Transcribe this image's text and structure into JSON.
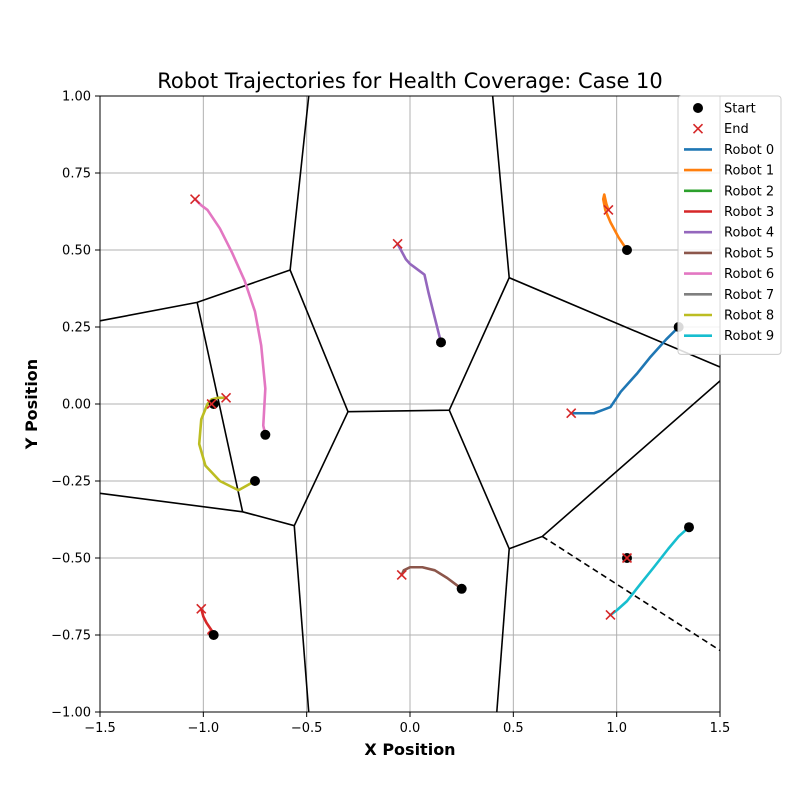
{
  "chart_data": {
    "type": "line",
    "title": "Robot Trajectories for Health Coverage: Case 10",
    "xlabel": "X Position",
    "ylabel": "Y Position",
    "xlim": [
      -1.5,
      1.5
    ],
    "ylim": [
      -1.0,
      1.0
    ],
    "xticks": [
      -1.5,
      -1.0,
      -0.5,
      0.0,
      0.5,
      1.0,
      1.5
    ],
    "xtick_labels": [
      "−1.5",
      "−1.0",
      "−0.5",
      "0.0",
      "0.5",
      "1.0",
      "1.5"
    ],
    "yticks": [
      -1.0,
      -0.75,
      -0.5,
      -0.25,
      0.0,
      0.25,
      0.5,
      0.75,
      1.0
    ],
    "ytick_labels": [
      "−1.00",
      "−0.75",
      "−0.50",
      "−0.25",
      "0.00",
      "0.25",
      "0.50",
      "0.75",
      "1.00"
    ],
    "grid": true,
    "legend_position": "top-right",
    "legend": {
      "start_label": "Start",
      "end_label": "End",
      "start_color": "#000000",
      "end_color": "#d62728"
    },
    "series": [
      {
        "name": "Robot 0",
        "color": "#1f77b4",
        "start": [
          1.3,
          0.25
        ],
        "end": [
          0.78,
          -0.03
        ],
        "x": [
          1.3,
          1.24,
          1.16,
          1.1,
          1.02,
          0.97,
          0.93,
          0.89,
          0.85,
          0.78
        ],
        "y": [
          0.25,
          0.21,
          0.15,
          0.1,
          0.04,
          -0.01,
          -0.02,
          -0.03,
          -0.03,
          -0.03
        ]
      },
      {
        "name": "Robot 1",
        "color": "#ff7f0e",
        "start": [
          1.05,
          0.5
        ],
        "end": [
          0.96,
          0.63
        ],
        "x": [
          1.05,
          1.01,
          0.97,
          0.945,
          0.935,
          0.94,
          0.95,
          0.96
        ],
        "y": [
          0.5,
          0.54,
          0.59,
          0.63,
          0.665,
          0.68,
          0.65,
          0.63
        ]
      },
      {
        "name": "Robot 2",
        "color": "#2ca02c",
        "start": [
          1.05,
          -0.5
        ],
        "end": [
          1.05,
          -0.5
        ],
        "x": [
          1.05,
          1.05
        ],
        "y": [
          -0.5,
          -0.5
        ]
      },
      {
        "name": "Robot 3",
        "color": "#d62728",
        "start": [
          -0.95,
          -0.75
        ],
        "end": [
          -1.01,
          -0.665
        ],
        "x": [
          -0.95,
          -0.975,
          -0.96,
          -0.985,
          -1.0,
          -1.01
        ],
        "y": [
          -0.75,
          -0.745,
          -0.735,
          -0.71,
          -0.69,
          -0.665
        ]
      },
      {
        "name": "Robot 4",
        "color": "#9467bd",
        "start": [
          0.15,
          0.2
        ],
        "end": [
          -0.06,
          0.52
        ],
        "x": [
          0.15,
          0.12,
          0.09,
          0.07,
          0.05,
          0.02,
          0.0,
          -0.02,
          -0.06
        ],
        "y": [
          0.2,
          0.28,
          0.36,
          0.42,
          0.43,
          0.445,
          0.455,
          0.47,
          0.52
        ]
      },
      {
        "name": "Robot 5",
        "color": "#8c564b",
        "start": [
          0.25,
          -0.6
        ],
        "end": [
          -0.04,
          -0.555
        ],
        "x": [
          0.25,
          0.18,
          0.12,
          0.06,
          0.0,
          -0.03,
          -0.04
        ],
        "y": [
          -0.6,
          -0.565,
          -0.54,
          -0.53,
          -0.53,
          -0.54,
          -0.555
        ]
      },
      {
        "name": "Robot 6",
        "color": "#e377c2",
        "start": [
          -0.7,
          -0.1
        ],
        "end": [
          -1.04,
          0.665
        ],
        "x": [
          -0.7,
          -0.71,
          -0.7,
          -0.72,
          -0.75,
          -0.8,
          -0.86,
          -0.92,
          -0.98,
          -1.01,
          -1.04
        ],
        "y": [
          -0.1,
          -0.07,
          0.05,
          0.19,
          0.3,
          0.4,
          0.49,
          0.57,
          0.63,
          0.645,
          0.665
        ]
      },
      {
        "name": "Robot 7",
        "color": "#7f7f7f",
        "start": [
          -0.95,
          0.0
        ],
        "end": [
          -0.96,
          0.0
        ],
        "x": [
          -0.95,
          -0.96
        ],
        "y": [
          0.0,
          0.0
        ]
      },
      {
        "name": "Robot 8",
        "color": "#bcbd22",
        "start": [
          -0.75,
          -0.25
        ],
        "end": [
          -0.89,
          0.02
        ],
        "x": [
          -0.75,
          -0.83,
          -0.92,
          -0.99,
          -1.02,
          -1.01,
          -0.98,
          -0.96,
          -0.93,
          -0.89
        ],
        "y": [
          -0.25,
          -0.28,
          -0.25,
          -0.2,
          -0.13,
          -0.05,
          0.0,
          0.015,
          0.02,
          0.02
        ]
      },
      {
        "name": "Robot 9",
        "color": "#17becf",
        "start": [
          1.35,
          -0.4
        ],
        "end": [
          0.97,
          -0.685
        ],
        "x": [
          1.35,
          1.3,
          1.25,
          1.18,
          1.12,
          1.05,
          1.0,
          0.97
        ],
        "y": [
          -0.4,
          -0.43,
          -0.47,
          -0.53,
          -0.58,
          -0.64,
          -0.67,
          -0.685
        ]
      }
    ],
    "boundaries": [
      {
        "style": "solid",
        "points": [
          [
            -1.5,
            0.27
          ],
          [
            -1.03,
            0.33
          ],
          [
            -0.58,
            0.435
          ],
          [
            -0.3,
            -0.025
          ],
          [
            0.19,
            -0.02
          ],
          [
            0.48,
            0.41
          ],
          [
            1.5,
            0.12
          ]
        ]
      },
      {
        "style": "solid",
        "points": [
          [
            -0.58,
            0.435
          ],
          [
            -0.49,
            1.0
          ]
        ]
      },
      {
        "style": "solid",
        "points": [
          [
            0.48,
            0.41
          ],
          [
            0.4,
            1.0
          ]
        ]
      },
      {
        "style": "solid",
        "points": [
          [
            -1.03,
            0.33
          ],
          [
            -0.81,
            -0.35
          ]
        ]
      },
      {
        "style": "solid",
        "points": [
          [
            -1.5,
            -0.29
          ],
          [
            -0.81,
            -0.35
          ],
          [
            -0.56,
            -0.395
          ],
          [
            -0.3,
            -0.025
          ]
        ]
      },
      {
        "style": "solid",
        "points": [
          [
            -0.56,
            -0.395
          ],
          [
            -0.49,
            -1.0
          ]
        ]
      },
      {
        "style": "solid",
        "points": [
          [
            0.19,
            -0.02
          ],
          [
            0.48,
            -0.47
          ],
          [
            0.64,
            -0.43
          ],
          [
            1.5,
            0.075
          ]
        ]
      },
      {
        "style": "solid",
        "points": [
          [
            0.48,
            -0.47
          ],
          [
            0.42,
            -1.0
          ]
        ]
      },
      {
        "style": "dashed",
        "points": [
          [
            0.64,
            -0.43
          ],
          [
            1.5,
            -0.8
          ]
        ]
      }
    ]
  }
}
